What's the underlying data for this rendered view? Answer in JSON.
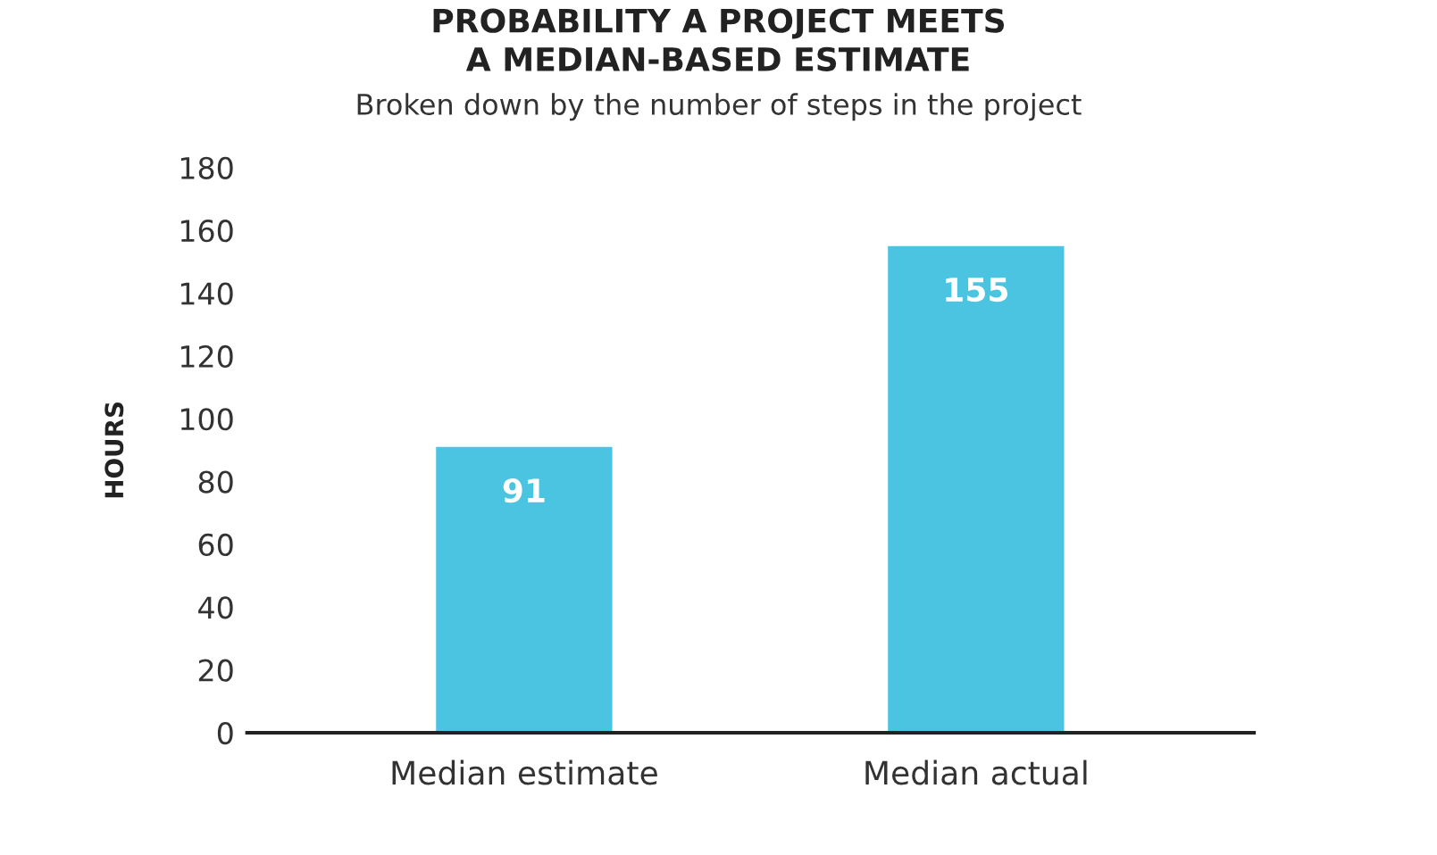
{
  "chart_data": {
    "type": "bar",
    "title": "PROBABILITY A PROJECT MEETS\nA MEDIAN-BASED ESTIMATE",
    "subtitle": "Broken down by the number of steps in the project",
    "ylabel": "HOURS",
    "categories": [
      "Median estimate",
      "Median actual"
    ],
    "values": [
      91,
      155
    ],
    "color": "#4ac4e0",
    "ylim": [
      0,
      180
    ],
    "yticks": [
      0,
      20,
      40,
      60,
      80,
      100,
      120,
      140,
      160,
      180
    ],
    "grid": false,
    "data_labels": true
  }
}
